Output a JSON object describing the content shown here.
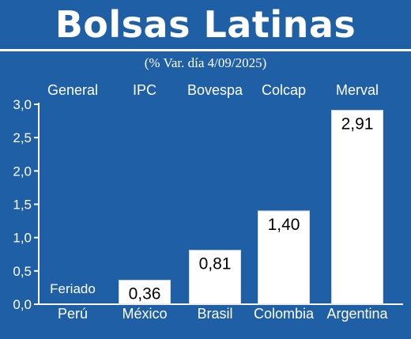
{
  "title": "Bolsas Latinas",
  "subtitle": "(% Var. día 4/09/2025)",
  "colors": {
    "background": "#1f5fa6",
    "bar": "#ffffff",
    "text": "#ffffff",
    "value_text": "#000000"
  },
  "chart_data": {
    "type": "bar",
    "title": "Bolsas Latinas",
    "subtitle": "(% Var. día 4/09/2025)",
    "categories": [
      "Perú",
      "México",
      "Brasil",
      "Colombia",
      "Argentina"
    ],
    "index_names": [
      "General",
      "IPC",
      "Bovespa",
      "Colcap",
      "Merval"
    ],
    "values": [
      null,
      0.36,
      0.81,
      1.4,
      2.91
    ],
    "value_labels": [
      "Feriado",
      "0,36",
      "0,81",
      "1,40",
      "2,91"
    ],
    "yticks": [
      "0,0",
      "0,5",
      "1,0",
      "1,5",
      "2,0",
      "2,5",
      "3,0"
    ],
    "ylim": [
      0,
      3
    ],
    "grid": false,
    "xlabel": "",
    "ylabel": ""
  }
}
